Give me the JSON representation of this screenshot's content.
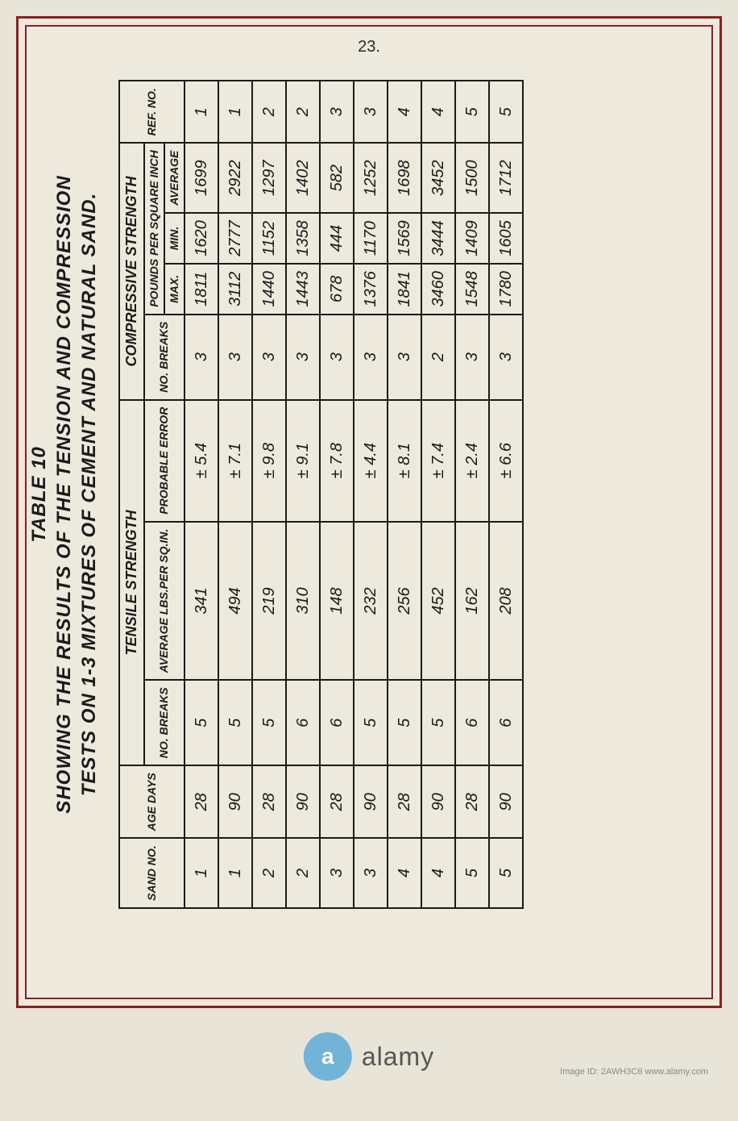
{
  "page_number": "23.",
  "title": {
    "line1": "TABLE 10",
    "line2": "SHOWING THE RESULTS OF THE TENSION AND COMPRESSION",
    "line3": "TESTS ON 1-3 MIXTURES OF CEMENT AND NATURAL SAND."
  },
  "table": {
    "headers": {
      "sand_no": "SAND NO.",
      "age": "AGE DAYS",
      "tensile_group": "TENSILE STRENGTH",
      "tensile_breaks": "NO. BREAKS",
      "tensile_avg": "AVERAGE LBS.PER SQ.IN.",
      "tensile_error": "PROBABLE ERROR",
      "compressive_group": "COMPRESSIVE STRENGTH",
      "compressive_breaks": "NO. BREAKS",
      "compressive_sub": "POUNDS PER SQUARE INCH",
      "comp_max": "MAX.",
      "comp_min": "MIN.",
      "comp_avg": "AVERAGE",
      "ref_no": "REF. NO."
    },
    "rows": [
      {
        "sand": "1",
        "age": "28",
        "tb": "5",
        "tavg": "341",
        "terr": "± 5.4",
        "cb": "3",
        "cmax": "1811",
        "cmin": "1620",
        "cavg": "1699",
        "ref": "1"
      },
      {
        "sand": "1",
        "age": "90",
        "tb": "5",
        "tavg": "494",
        "terr": "± 7.1",
        "cb": "3",
        "cmax": "3112",
        "cmin": "2777",
        "cavg": "2922",
        "ref": "1"
      },
      {
        "sand": "2",
        "age": "28",
        "tb": "5",
        "tavg": "219",
        "terr": "± 9.8",
        "cb": "3",
        "cmax": "1440",
        "cmin": "1152",
        "cavg": "1297",
        "ref": "2"
      },
      {
        "sand": "2",
        "age": "90",
        "tb": "6",
        "tavg": "310",
        "terr": "± 9.1",
        "cb": "3",
        "cmax": "1443",
        "cmin": "1358",
        "cavg": "1402",
        "ref": "2"
      },
      {
        "sand": "3",
        "age": "28",
        "tb": "6",
        "tavg": "148",
        "terr": "± 7.8",
        "cb": "3",
        "cmax": "678",
        "cmin": "444",
        "cavg": "582",
        "ref": "3"
      },
      {
        "sand": "3",
        "age": "90",
        "tb": "5",
        "tavg": "232",
        "terr": "± 4.4",
        "cb": "3",
        "cmax": "1376",
        "cmin": "1170",
        "cavg": "1252",
        "ref": "3"
      },
      {
        "sand": "4",
        "age": "28",
        "tb": "5",
        "tavg": "256",
        "terr": "± 8.1",
        "cb": "3",
        "cmax": "1841",
        "cmin": "1569",
        "cavg": "1698",
        "ref": "4"
      },
      {
        "sand": "4",
        "age": "90",
        "tb": "5",
        "tavg": "452",
        "terr": "± 7.4",
        "cb": "2",
        "cmax": "3460",
        "cmin": "3444",
        "cavg": "3452",
        "ref": "4"
      },
      {
        "sand": "5",
        "age": "28",
        "tb": "6",
        "tavg": "162",
        "terr": "± 2.4",
        "cb": "3",
        "cmax": "1548",
        "cmin": "1409",
        "cavg": "1500",
        "ref": "5"
      },
      {
        "sand": "5",
        "age": "90",
        "tb": "6",
        "tavg": "208",
        "terr": "± 6.6",
        "cb": "3",
        "cmax": "1780",
        "cmin": "1605",
        "cavg": "1712",
        "ref": "5"
      }
    ]
  },
  "watermark": {
    "logo_letter": "a",
    "text": "alamy",
    "code": "Image ID: 2AWH3C6 www.alamy.com"
  },
  "styling": {
    "page_bg": "#e8e4d8",
    "border_color": "#8b2020",
    "ink_color": "#1a1a1a",
    "watermark_blue": "#72b4d8"
  }
}
